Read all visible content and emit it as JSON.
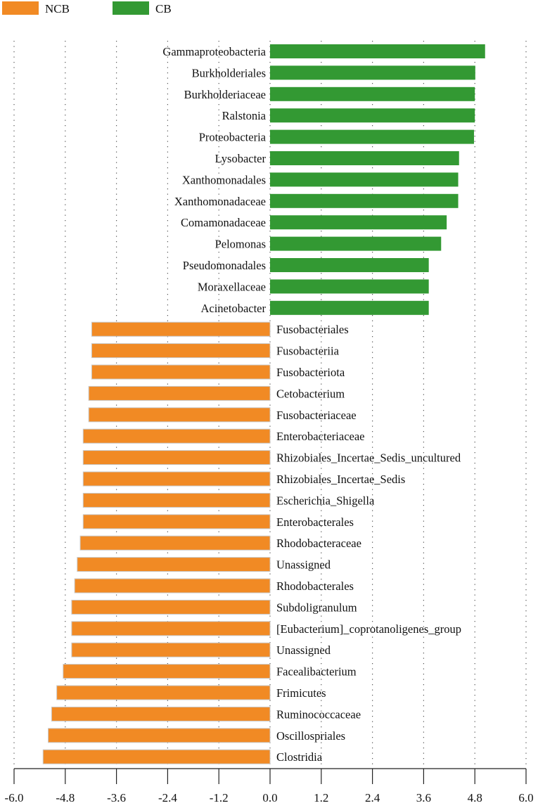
{
  "chart_data": {
    "type": "bar",
    "orientation": "horizontal",
    "title": "",
    "xlabel": "",
    "ylabel": "",
    "xlim": [
      -6.0,
      6.0
    ],
    "xticks": [
      "-6.0",
      "-4.8",
      "-3.6",
      "-2.4",
      "-1.2",
      "0.0",
      "1.2",
      "2.4",
      "3.6",
      "4.8",
      "6.0"
    ],
    "xtick_values": [
      -6.0,
      -4.8,
      -3.6,
      -2.4,
      -1.2,
      0.0,
      1.2,
      2.4,
      3.6,
      4.8,
      6.0
    ],
    "grid": "vertical dotted",
    "legend": [
      {
        "name": "NCB",
        "color": "#F18A24"
      },
      {
        "name": "CB",
        "color": "#339933"
      }
    ],
    "legend_position": "top-left",
    "categories": [
      "Gammaproteobacteria",
      "Burkholderiales",
      "Burkholderiaceae",
      "Ralstonia",
      "Proteobacteria",
      "Lysobacter",
      "Xanthomonadales",
      "Xanthomonadaceae",
      "Comamonadaceae",
      "Pelomonas",
      "Pseudomonadales",
      "Moraxellaceae",
      "Acinetobacter",
      "Fusobacteriales",
      "Fusobacteriia",
      "Fusobacteriota",
      "Cetobacterium",
      "Fusobacteriaceae",
      "Enterobacteriaceae",
      "Rhizobiales_Incertae_Sedis_uncultured",
      "Rhizobiales_Incertae_Sedis",
      "Escherichia_Shigella",
      "Enterobacterales",
      "Rhodobacteraceae",
      "Unassigned",
      "Rhodobacterales",
      "Subdoligranulum",
      "[Eubacterium]_coprotanoligenes_group",
      "Unassigned",
      "Facealibacterium",
      "Frimicutes",
      "Ruminococcaceae",
      "Oscillospriales",
      "Clostridia"
    ],
    "values": [
      5.04,
      4.81,
      4.8,
      4.8,
      4.78,
      4.43,
      4.41,
      4.41,
      4.14,
      4.01,
      3.72,
      3.72,
      3.72,
      -4.18,
      -4.18,
      -4.18,
      -4.25,
      -4.25,
      -4.38,
      -4.38,
      -4.38,
      -4.38,
      -4.38,
      -4.45,
      -4.52,
      -4.58,
      -4.65,
      -4.65,
      -4.65,
      -4.85,
      -5.0,
      -5.12,
      -5.2,
      -5.32
    ],
    "groups": [
      "CB",
      "CB",
      "CB",
      "CB",
      "CB",
      "CB",
      "CB",
      "CB",
      "CB",
      "CB",
      "CB",
      "CB",
      "CB",
      "NCB",
      "NCB",
      "NCB",
      "NCB",
      "NCB",
      "NCB",
      "NCB",
      "NCB",
      "NCB",
      "NCB",
      "NCB",
      "NCB",
      "NCB",
      "NCB",
      "NCB",
      "NCB",
      "NCB",
      "NCB",
      "NCB",
      "NCB",
      "NCB"
    ]
  }
}
